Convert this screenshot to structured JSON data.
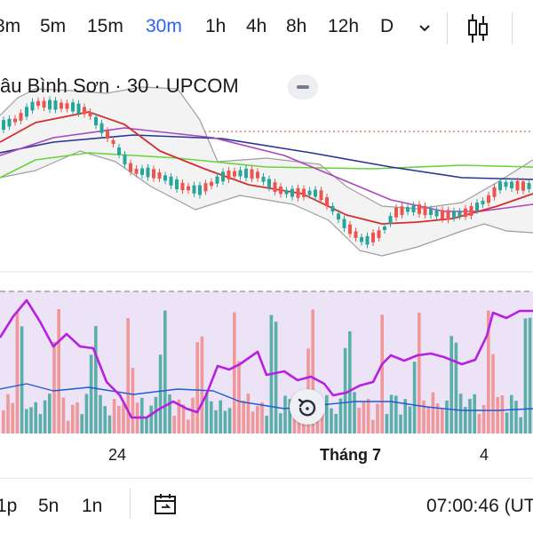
{
  "toolbar": {
    "timeframes": [
      "3m",
      "5m",
      "15m",
      "30m",
      "1h",
      "4h",
      "8h",
      "12h",
      "D"
    ],
    "active_timeframe": "30m",
    "icons": [
      "chevron-down-icon",
      "candlestick-icon"
    ]
  },
  "symbol": {
    "title": "âu Bình Sơn · 30 · UPCOM"
  },
  "x_axis": {
    "labels": [
      "24",
      "Tháng 7",
      "4"
    ]
  },
  "bottom_bar": {
    "ranges": [
      "1p",
      "5n",
      "1n"
    ],
    "clock": "07:00:46 (UT"
  },
  "colors": {
    "accent": "#2962ff",
    "up": "#26a69a",
    "down": "#ef5350",
    "ma_red": "#d32f2f",
    "ma_purple": "#ab47bc",
    "ma_blue": "#283593",
    "ma_green": "#66d43c",
    "bollinger": "#9e9e9e",
    "rsi_line": "#b620e0",
    "rsi_band": "#ede3f7",
    "volume_ma": "#1e5bd6"
  }
}
